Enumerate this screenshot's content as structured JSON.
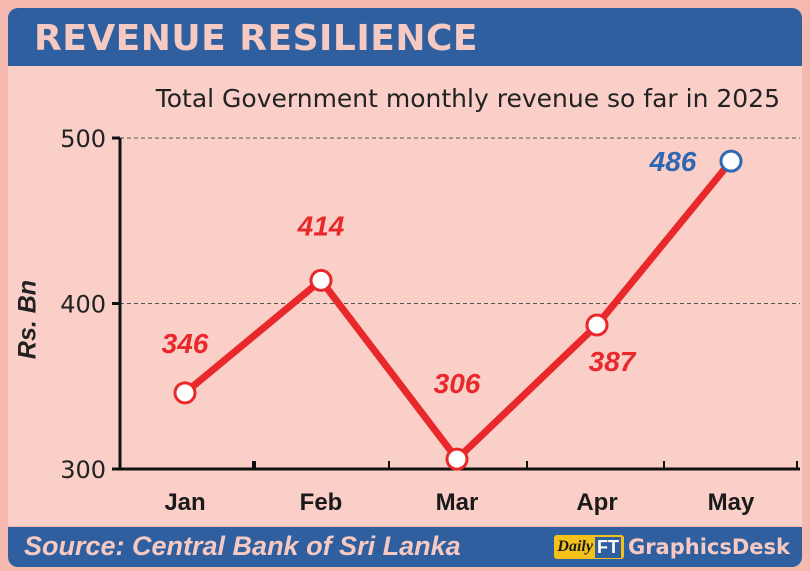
{
  "header": {
    "title": "REVENUE RESILIENCE"
  },
  "footer": {
    "source": "Source: Central Bank of Sri Lanka",
    "logo_daily": "Daily",
    "logo_ft": "FT",
    "brand": "GraphicsDesk"
  },
  "colors": {
    "line": "#e8282a",
    "highlight": "#2f67b0",
    "header": "#2f5f9e",
    "panel": "#f9cfc8"
  },
  "chart_data": {
    "type": "line",
    "title": "",
    "subtitle": "Total Government monthly revenue so far in 2025",
    "xlabel": "",
    "ylabel": "Rs. Bn",
    "categories": [
      "Jan",
      "Feb",
      "Mar",
      "Apr",
      "May"
    ],
    "series": [
      {
        "values": [
          346,
          414,
          306,
          387,
          486
        ]
      }
    ],
    "data_labels": [
      "346",
      "414",
      "306",
      "387",
      "486"
    ],
    "highlight_last": true,
    "ylim": [
      300,
      500
    ],
    "yticks": [
      300,
      400,
      500
    ],
    "grid": "dashed horizontal at 400 and 500",
    "legend": "none"
  }
}
